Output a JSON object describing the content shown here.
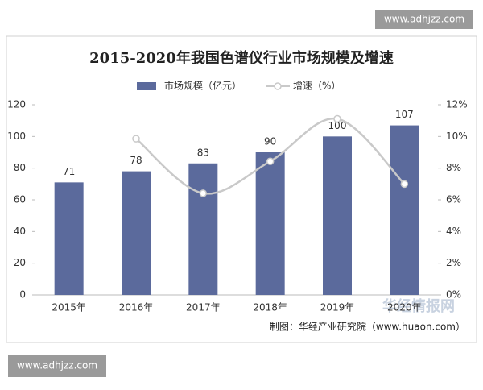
{
  "chart_data": {
    "type": "bar",
    "title": "2015-2020年我国色谱仪行业市场规模及增速",
    "categories": [
      "2015年",
      "2016年",
      "2017年",
      "2018年",
      "2019年",
      "2020年"
    ],
    "series": [
      {
        "name": "市场规模（亿元）",
        "type": "bar",
        "color": "#5b6a9c",
        "values": [
          71,
          78,
          83,
          90,
          100,
          107
        ]
      },
      {
        "name": "增速（%）",
        "type": "line",
        "axis": "y2",
        "color": "#c9c9c9",
        "values": [
          null,
          9.86,
          6.41,
          8.43,
          11.11,
          7.0
        ]
      }
    ],
    "ylim": [
      0,
      120
    ],
    "yticks": [
      0,
      20,
      40,
      60,
      80,
      100,
      120
    ],
    "y2lim": [
      0,
      12
    ],
    "y2ticks": [
      {
        "value": 0,
        "label": "0%"
      },
      {
        "value": 2,
        "label": "2%"
      },
      {
        "value": 4,
        "label": "4%"
      },
      {
        "value": 6,
        "label": "6%"
      },
      {
        "value": 8,
        "label": "8%"
      },
      {
        "value": 10,
        "label": "10%"
      },
      {
        "value": 12,
        "label": "12%"
      }
    ],
    "grid": false,
    "source": "制图：华经产业研究院（www.huaon.com）"
  },
  "watermarks": [
    "www.adhjzz.com",
    "华经情报网",
    "www.adhjzz.com"
  ]
}
